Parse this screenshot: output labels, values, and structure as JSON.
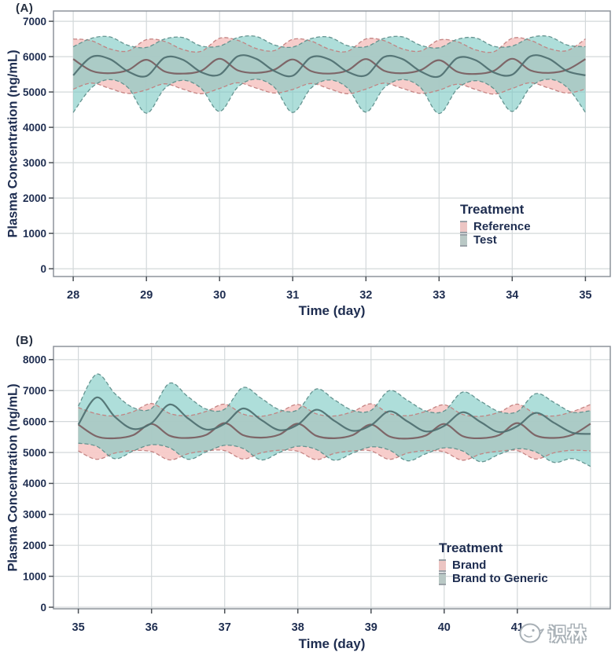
{
  "figure": {
    "background": "#ffffff"
  },
  "watermark": {
    "text": "识林",
    "icon": "shilin-logo"
  },
  "colors": {
    "axis_text": "#1e2d50",
    "panel_letter": "#242e3f",
    "border": "#8d949b",
    "grid": "#d3d8da",
    "tick": "#4a4f55",
    "pink": {
      "fill": "#f6c9c7",
      "fill_opacity": 0.92,
      "edge": "#c2807e",
      "line": "#795d5f",
      "swatch": "#ecc5c3"
    },
    "teal": {
      "fill": "#7ccac3",
      "fill_opacity": 0.62,
      "edge": "#5f8f8c",
      "line": "#4e6f70",
      "swatch": "#b9c8c5"
    }
  },
  "chart_data": [
    {
      "id": "A",
      "panel_label": "(A)",
      "type": "area",
      "subtype": "mean-ribbon",
      "xlabel": "Time (day)",
      "ylabel": "Plasma Concentration (ng/mL)",
      "xlim": [
        27.73,
        35.34
      ],
      "ylim": [
        -220,
        7290
      ],
      "x_ticks": [
        28,
        29,
        30,
        31,
        32,
        33,
        34,
        35
      ],
      "y_ticks": [
        0,
        1000,
        2000,
        3000,
        4000,
        5000,
        6000,
        7000
      ],
      "x_grid_extra": [],
      "grid": "on",
      "legend": {
        "title": "Treatment",
        "position": "inside-right",
        "items": [
          {
            "label": "Reference",
            "color_key": "pink"
          },
          {
            "label": "Test",
            "color_key": "teal"
          }
        ]
      },
      "x0": 28,
      "dx": 0.25,
      "series": [
        {
          "name": "Reference",
          "color_key": "pink",
          "mean": [
            5930,
            5600,
            5530,
            5620,
            5910,
            5580,
            5520,
            5600,
            5940,
            5610,
            5540,
            5630,
            5920,
            5590,
            5520,
            5610,
            5930,
            5600,
            5530,
            5620,
            5900,
            5570,
            5510,
            5600,
            5940,
            5610,
            5540,
            5630,
            5930
          ],
          "upper": [
            6500,
            6450,
            6220,
            6160,
            6480,
            6430,
            6200,
            6150,
            6520,
            6460,
            6230,
            6170,
            6490,
            6440,
            6210,
            6150,
            6500,
            6450,
            6220,
            6160,
            6470,
            6420,
            6190,
            6140,
            6520,
            6460,
            6230,
            6170,
            6500
          ],
          "lower": [
            5080,
            5250,
            5100,
            4960,
            5060,
            5230,
            5080,
            4950,
            5100,
            5260,
            5110,
            4970,
            5070,
            5240,
            5090,
            4950,
            5080,
            5250,
            5100,
            4960,
            5050,
            5220,
            5070,
            4940,
            5100,
            5260,
            5110,
            4970,
            5080
          ]
        },
        {
          "name": "Test",
          "color_key": "teal",
          "mean": [
            5470,
            5990,
            5930,
            5580,
            5450,
            5970,
            5910,
            5560,
            5490,
            6010,
            5940,
            5590,
            5460,
            5980,
            5920,
            5570,
            5470,
            5990,
            5930,
            5580,
            5440,
            5960,
            5900,
            5550,
            5490,
            6010,
            5940,
            5590,
            5470
          ],
          "upper": [
            6280,
            6520,
            6560,
            6320,
            6260,
            6500,
            6540,
            6300,
            6300,
            6540,
            6570,
            6330,
            6270,
            6510,
            6550,
            6310,
            6280,
            6520,
            6560,
            6320,
            6250,
            6490,
            6530,
            6290,
            6300,
            6540,
            6570,
            6330,
            6280
          ],
          "lower": [
            4420,
            5120,
            5350,
            5120,
            4400,
            5100,
            5330,
            5100,
            4450,
            5140,
            5360,
            5130,
            4420,
            5110,
            5340,
            5110,
            4430,
            5120,
            5350,
            5120,
            4390,
            5090,
            5320,
            5090,
            4450,
            5140,
            5360,
            5130,
            4420
          ]
        }
      ]
    },
    {
      "id": "B",
      "panel_label": "(B)",
      "type": "area",
      "subtype": "mean-ribbon",
      "xlabel": "Time (day)",
      "ylabel": "Plasma Concentration (ng/mL)",
      "xlim": [
        34.66,
        42.27
      ],
      "ylim": [
        -50,
        8426
      ],
      "x_ticks": [
        35,
        36,
        37,
        38,
        39,
        40,
        41
      ],
      "y_ticks": [
        0,
        1000,
        2000,
        3000,
        4000,
        5000,
        6000,
        7000,
        8000
      ],
      "x_grid_extra": [
        42
      ],
      "grid": "on",
      "legend": {
        "title": "Treatment",
        "position": "inside-right",
        "items": [
          {
            "label": "Brand",
            "color_key": "pink"
          },
          {
            "label": "Brand to Generic",
            "color_key": "teal"
          }
        ]
      },
      "x0": 35,
      "dx": 0.25,
      "series": [
        {
          "name": "Brand",
          "color_key": "pink",
          "mean": [
            5900,
            5520,
            5460,
            5560,
            5920,
            5540,
            5470,
            5570,
            5950,
            5560,
            5480,
            5580,
            5930,
            5540,
            5460,
            5560,
            5900,
            5520,
            5450,
            5550,
            5920,
            5530,
            5460,
            5560,
            5950,
            5550,
            5470,
            5570,
            5930
          ],
          "upper": [
            6450,
            6250,
            6180,
            6320,
            6580,
            6260,
            6190,
            6330,
            6560,
            6240,
            6170,
            6310,
            6550,
            6250,
            6180,
            6320,
            6570,
            6260,
            6190,
            6330,
            6540,
            6230,
            6170,
            6300,
            6560,
            6250,
            6180,
            6320,
            6550
          ],
          "lower": [
            5050,
            4780,
            4980,
            5060,
            5030,
            4760,
            4960,
            5050,
            5060,
            4790,
            4990,
            5070,
            5040,
            4770,
            4970,
            5050,
            5050,
            4780,
            4980,
            5060,
            5020,
            4750,
            4950,
            5040,
            5060,
            4790,
            4990,
            5070,
            5050
          ]
        },
        {
          "name": "Brand to Generic",
          "color_key": "teal",
          "mean": [
            5900,
            6780,
            6150,
            5760,
            5950,
            6550,
            6100,
            5740,
            5930,
            6420,
            6050,
            5720,
            5900,
            6380,
            6020,
            5700,
            5880,
            6330,
            6000,
            5680,
            5860,
            6300,
            5980,
            5660,
            5850,
            6280,
            5960,
            5640,
            5600
          ],
          "upper": [
            6500,
            7530,
            6900,
            6450,
            6420,
            7240,
            6800,
            6400,
            6400,
            7100,
            6750,
            6380,
            6380,
            7050,
            6700,
            6360,
            6360,
            7000,
            6680,
            6340,
            6340,
            6950,
            6650,
            6320,
            6320,
            6900,
            6620,
            6300,
            6350
          ],
          "lower": [
            5300,
            5200,
            4800,
            5050,
            5250,
            5150,
            4780,
            5020,
            5230,
            5130,
            4760,
            5000,
            5200,
            5100,
            4750,
            4980,
            5180,
            5080,
            4730,
            4960,
            5150,
            5050,
            4700,
            4940,
            5120,
            5020,
            4680,
            4800,
            4550
          ]
        }
      ]
    }
  ]
}
